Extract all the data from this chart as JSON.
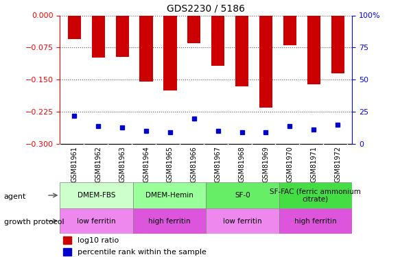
{
  "title": "GDS2230 / 5186",
  "samples": [
    "GSM81961",
    "GSM81962",
    "GSM81963",
    "GSM81964",
    "GSM81965",
    "GSM81966",
    "GSM81967",
    "GSM81968",
    "GSM81969",
    "GSM81970",
    "GSM81971",
    "GSM81972"
  ],
  "log10_ratio": [
    -0.055,
    -0.098,
    -0.097,
    -0.155,
    -0.175,
    -0.065,
    -0.118,
    -0.165,
    -0.215,
    -0.07,
    -0.16,
    -0.135
  ],
  "percentile_rank": [
    22,
    14,
    13,
    10,
    9,
    20,
    10,
    9,
    9,
    14,
    11,
    15
  ],
  "ylim_left": [
    -0.3,
    0
  ],
  "ylim_right": [
    0,
    100
  ],
  "yticks_left": [
    0,
    -0.075,
    -0.15,
    -0.225,
    -0.3
  ],
  "yticks_right": [
    0,
    25,
    50,
    75,
    100
  ],
  "bar_color": "#cc0000",
  "dot_color": "#0000cc",
  "agent_groups": [
    {
      "label": "DMEM-FBS",
      "start": 0,
      "end": 3,
      "color": "#ccffcc"
    },
    {
      "label": "DMEM-Hemin",
      "start": 3,
      "end": 6,
      "color": "#99ff99"
    },
    {
      "label": "SF-0",
      "start": 6,
      "end": 9,
      "color": "#66ee66"
    },
    {
      "label": "SF-FAC (ferric ammonium\ncitrate)",
      "start": 9,
      "end": 12,
      "color": "#44dd44"
    }
  ],
  "protocol_groups": [
    {
      "label": "low ferritin",
      "start": 0,
      "end": 3,
      "color": "#ee88ee"
    },
    {
      "label": "high ferritin",
      "start": 3,
      "end": 6,
      "color": "#dd55dd"
    },
    {
      "label": "low ferritin",
      "start": 6,
      "end": 9,
      "color": "#ee88ee"
    },
    {
      "label": "high ferritin",
      "start": 9,
      "end": 12,
      "color": "#dd55dd"
    }
  ],
  "agent_label": "agent",
  "protocol_label": "growth protocol",
  "legend_items": [
    {
      "label": "log10 ratio",
      "color": "#cc0000"
    },
    {
      "label": "percentile rank within the sample",
      "color": "#0000cc"
    }
  ],
  "sample_label_bg": "#d8d8d8",
  "grid_color": "#555555"
}
